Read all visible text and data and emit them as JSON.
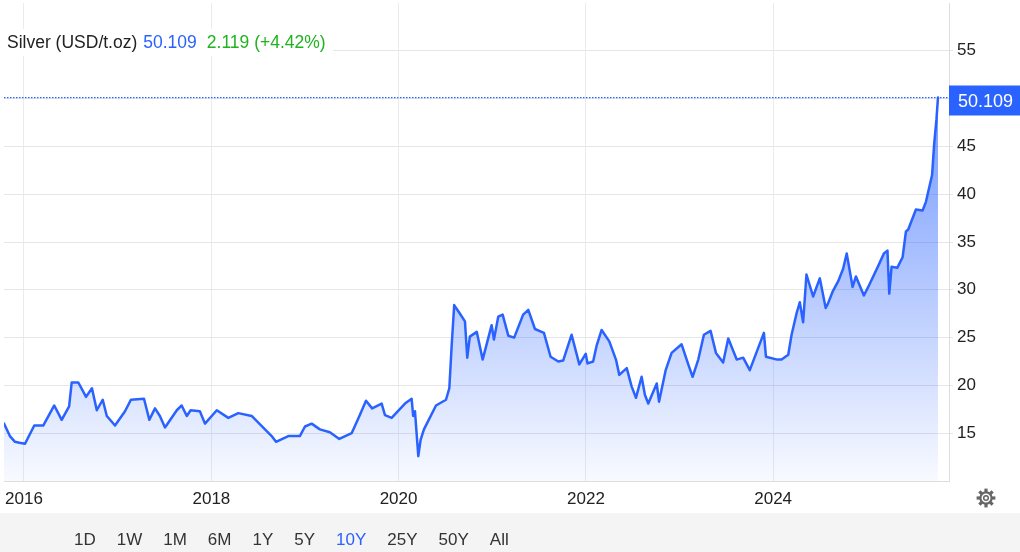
{
  "chart_data": {
    "type": "area",
    "title": "Silver (USD/t.oz)",
    "annotations": [
      "50.109",
      "2.119 (+4.42%)",
      "1D",
      "1W",
      "1M",
      "6M",
      "1Y",
      "5Y",
      "10Y",
      "25Y",
      "50Y",
      "All"
    ],
    "color": "#2962ff",
    "grid": true,
    "xlim": [
      "2015-10-15",
      "2025-11-17"
    ],
    "xticks": [
      "2016",
      "2018",
      "2020",
      "2022",
      "2024"
    ],
    "ylim": [
      10,
      60
    ],
    "yticks": [
      15,
      20,
      25,
      30,
      35,
      40,
      45,
      {
        "value": 50,
        "label": null
      },
      55
    ],
    "ref_lines": [
      {
        "axis": "y",
        "value": 50.109,
        "label": "50.109",
        "color": "#2962ff",
        "line_style": "dotted"
      }
    ],
    "x": [
      "2015-10-15",
      "2015-11-07",
      "2015-11-27",
      "2015-12-14",
      "2016-01-05",
      "2016-02-10",
      "2016-03-16",
      "2016-04-28",
      "2016-05-27",
      "2016-06-25",
      "2016-07-05",
      "2016-07-31",
      "2016-08-30",
      "2016-09-22",
      "2016-10-11",
      "2016-11-03",
      "2016-11-19",
      "2016-12-21",
      "2017-01-29",
      "2017-02-21",
      "2017-04-13",
      "2017-05-04",
      "2017-05-26",
      "2017-06-14",
      "2017-07-04",
      "2017-08-19",
      "2017-09-07",
      "2017-09-27",
      "2017-10-12",
      "2017-11-17",
      "2017-12-07",
      "2018-01-22",
      "2018-03-08",
      "2018-04-16",
      "2018-06-07",
      "2018-08-24",
      "2018-09-10",
      "2018-10-28",
      "2018-12-12",
      "2019-01-01",
      "2019-01-27",
      "2019-02-28",
      "2019-04-08",
      "2019-05-15",
      "2019-07-02",
      "2019-08-03",
      "2019-08-27",
      "2019-09-20",
      "2019-10-27",
      "2019-11-09",
      "2019-12-05",
      "2020-01-26",
      "2020-02-21",
      "2020-02-27",
      "2020-03-05",
      "2020-03-18",
      "2020-03-27",
      "2020-04-09",
      "2020-05-26",
      "2020-07-04",
      "2020-07-17",
      "2020-07-26",
      "2020-08-05",
      "2020-08-25",
      "2020-09-16",
      "2020-09-25",
      "2020-10-05",
      "2020-11-01",
      "2020-11-24",
      "2020-12-29",
      "2021-01-07",
      "2021-01-24",
      "2021-02-10",
      "2021-03-04",
      "2021-03-27",
      "2021-05-01",
      "2021-05-21",
      "2021-06-16",
      "2021-07-21",
      "2021-08-16",
      "2021-09-15",
      "2021-10-04",
      "2021-11-06",
      "2021-12-06",
      "2021-12-31",
      "2022-01-07",
      "2022-01-29",
      "2022-02-11",
      "2022-03-03",
      "2022-04-02",
      "2022-04-28",
      "2022-05-11",
      "2022-06-09",
      "2022-06-28",
      "2022-07-15",
      "2022-08-06",
      "2022-08-19",
      "2022-09-01",
      "2022-10-04",
      "2022-10-13",
      "2022-11-08",
      "2022-12-01",
      "2023-01-09",
      "2023-02-04",
      "2023-02-21",
      "2023-03-15",
      "2023-04-06",
      "2023-05-02",
      "2023-05-23",
      "2023-06-20",
      "2023-07-10",
      "2023-08-12",
      "2023-09-06",
      "2023-10-02",
      "2023-11-26",
      "2023-12-04",
      "2024-01-17",
      "2024-02-03",
      "2024-02-29",
      "2024-03-13",
      "2024-04-02",
      "2024-04-14",
      "2024-04-27",
      "2024-05-10",
      "2024-06-05",
      "2024-07-01",
      "2024-07-24",
      "2024-08-01",
      "2024-08-20",
      "2024-09-11",
      "2024-09-30",
      "2024-10-14",
      "2024-11-06",
      "2024-11-19",
      "2024-12-20",
      "2025-01-06",
      "2025-02-14",
      "2025-03-08",
      "2025-03-22",
      "2025-03-29",
      "2025-04-07",
      "2025-04-29",
      "2025-05-20",
      "2025-06-02",
      "2025-06-11",
      "2025-07-11",
      "2025-08-06",
      "2025-08-19",
      "2025-08-30",
      "2025-09-12",
      "2025-09-20",
      "2025-09-29",
      "2025-10-05"
    ],
    "values": [
      16.0,
      14.7,
      14.1,
      14.0,
      13.9,
      15.8,
      15.8,
      17.9,
      16.4,
      17.8,
      20.3,
      20.3,
      18.8,
      19.7,
      17.4,
      18.5,
      16.8,
      15.8,
      17.3,
      18.5,
      18.6,
      16.4,
      17.6,
      16.8,
      15.6,
      17.4,
      17.9,
      16.8,
      17.4,
      17.3,
      16.0,
      17.4,
      16.6,
      17.1,
      16.8,
      14.7,
      14.1,
      14.7,
      14.7,
      15.7,
      16.0,
      15.4,
      15.1,
      14.4,
      15.0,
      16.9,
      18.4,
      17.6,
      18.1,
      16.9,
      16.6,
      18.1,
      18.6,
      16.8,
      17.3,
      12.6,
      14.3,
      15.4,
      17.9,
      18.5,
      19.7,
      24.1,
      28.4,
      27.6,
      26.7,
      22.9,
      25.1,
      25.6,
      22.7,
      26.3,
      24.8,
      27.2,
      27.4,
      25.2,
      25.0,
      27.4,
      27.9,
      25.9,
      25.5,
      23.0,
      22.5,
      22.6,
      25.3,
      22.2,
      23.3,
      22.3,
      22.5,
      24.1,
      25.8,
      24.6,
      22.7,
      21.1,
      21.8,
      19.9,
      18.7,
      20.9,
      19.0,
      18.1,
      20.2,
      18.3,
      21.6,
      23.4,
      24.3,
      22.2,
      20.9,
      22.7,
      25.3,
      25.7,
      23.4,
      22.4,
      24.9,
      22.7,
      22.9,
      21.6,
      25.5,
      23.0,
      22.7,
      22.7,
      23.2,
      25.3,
      27.6,
      28.7,
      26.6,
      31.6,
      29.3,
      31.2,
      28.1,
      28.5,
      29.8,
      30.9,
      32.2,
      33.8,
      30.3,
      31.4,
      29.4,
      30.3,
      32.5,
      33.8,
      34.1,
      29.6,
      32.4,
      32.3,
      33.4,
      36.1,
      36.3,
      38.4,
      38.3,
      39.2,
      40.5,
      42.0,
      45.2,
      47.8,
      50.109
    ]
  }
}
